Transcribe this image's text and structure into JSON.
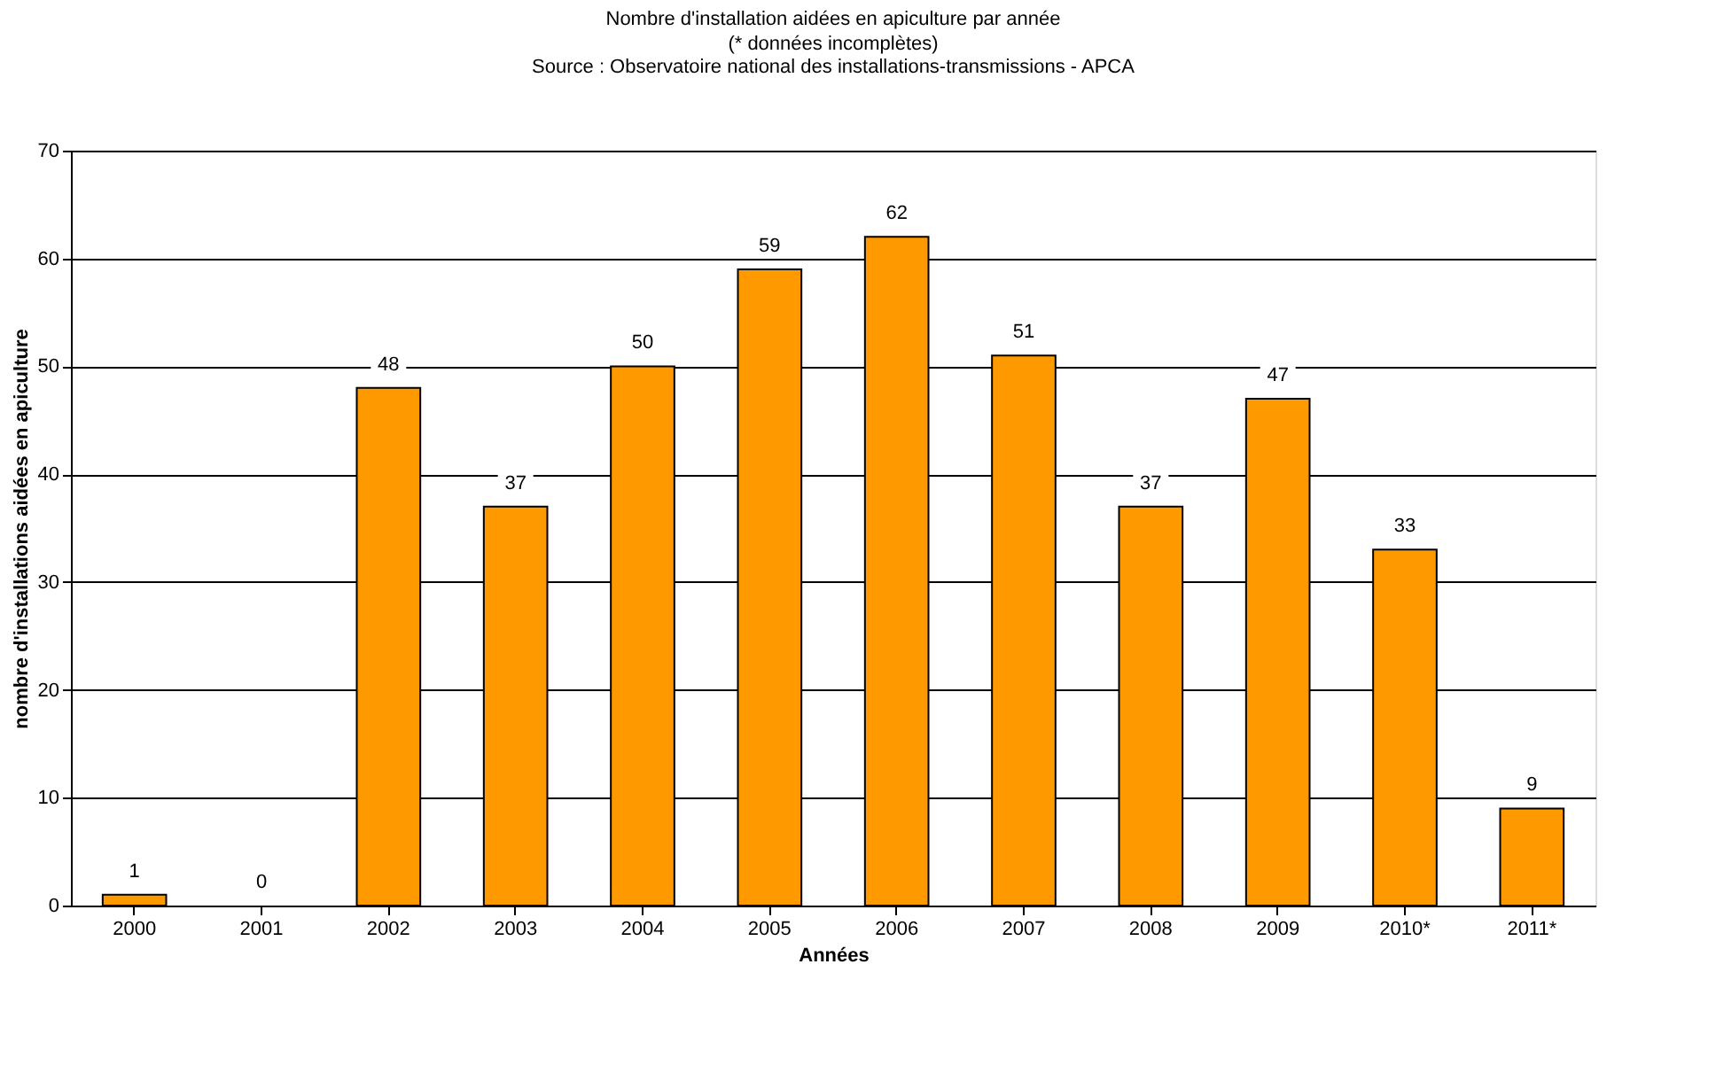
{
  "chart_data": {
    "type": "bar",
    "title": "Nombre d'installation aidées en apiculture par année",
    "subtitle": "(* données incomplètes)",
    "annotations": [
      "Source : Observatoire national des installations-transmissions - APCA"
    ],
    "xlabel": "Années",
    "ylabel": "nombre d'installations aidées en apiculture",
    "categories": [
      "2000",
      "2001",
      "2002",
      "2003",
      "2004",
      "2005",
      "2006",
      "2007",
      "2008",
      "2009",
      "2010*",
      "2011*"
    ],
    "values": [
      1,
      0,
      48,
      37,
      50,
      59,
      62,
      51,
      37,
      47,
      33,
      9
    ],
    "color": "#ff9900",
    "ylim": [
      0,
      70
    ],
    "yticks": [
      0,
      10,
      20,
      30,
      40,
      50,
      60,
      70
    ],
    "grid": "y",
    "data_labels": true
  }
}
